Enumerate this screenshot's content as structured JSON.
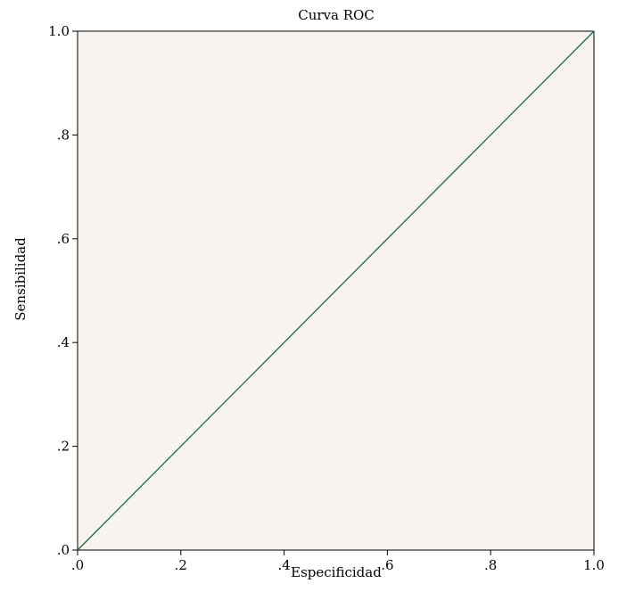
{
  "chart_data": {
    "type": "line",
    "title": "Curva ROC",
    "xlabel": "Especificidad",
    "ylabel": "Sensibilidad",
    "xlim": [
      0,
      1
    ],
    "ylim": [
      0,
      1
    ],
    "x_ticks": [
      0,
      0.2,
      0.4,
      0.6,
      0.8,
      1.0
    ],
    "x_tick_labels": [
      ".0",
      ".2",
      ".4",
      ".6",
      ".8",
      "1.0"
    ],
    "y_ticks": [
      0,
      0.2,
      0.4,
      0.6,
      0.8,
      1.0
    ],
    "y_tick_labels": [
      ".0",
      ".2",
      ".4",
      ".6",
      ".8",
      "1.0"
    ],
    "grid": false,
    "series": [
      {
        "x": [
          0,
          1
        ],
        "y": [
          0,
          1
        ],
        "color": "#1a6b4a"
      }
    ],
    "plot_background": "#f8f3ee"
  }
}
